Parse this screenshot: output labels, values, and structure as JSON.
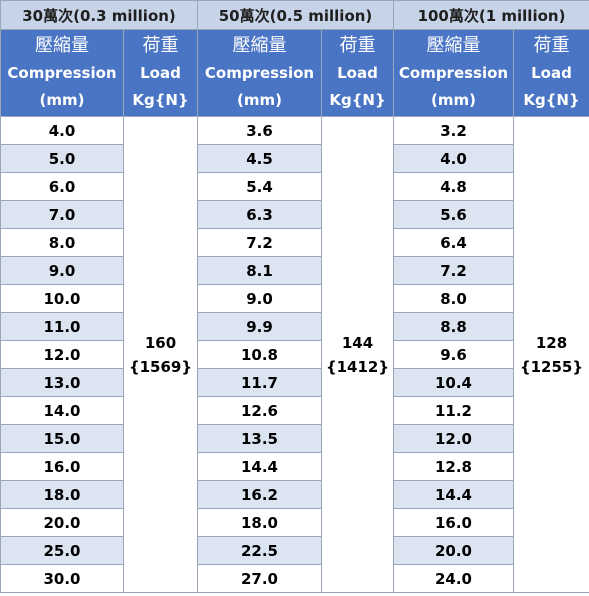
{
  "groups": [
    {
      "title": "30萬次(0.3 million)",
      "comp_zh": "壓縮量",
      "comp_en": "Compression",
      "comp_unit": "(mm)",
      "load_zh": "荷重",
      "load_en": "Load",
      "load_unit": "Kg{N}",
      "load_kg": "160",
      "load_n": "{1569}",
      "compression": [
        "4.0",
        "5.0",
        "6.0",
        "7.0",
        "8.0",
        "9.0",
        "10.0",
        "11.0",
        "12.0",
        "13.0",
        "14.0",
        "15.0",
        "16.0",
        "18.0",
        "20.0",
        "25.0",
        "30.0"
      ]
    },
    {
      "title": "50萬次(0.5 million)",
      "comp_zh": "壓縮量",
      "comp_en": "Compression",
      "comp_unit": "(mm)",
      "load_zh": "荷重",
      "load_en": "Load",
      "load_unit": "Kg{N}",
      "load_kg": "144",
      "load_n": "{1412}",
      "compression": [
        "3.6",
        "4.5",
        "5.4",
        "6.3",
        "7.2",
        "8.1",
        "9.0",
        "9.9",
        "10.8",
        "11.7",
        "12.6",
        "13.5",
        "14.4",
        "16.2",
        "18.0",
        "22.5",
        "27.0"
      ]
    },
    {
      "title": "100萬次(1 million)",
      "comp_zh": "壓縮量",
      "comp_en": "Compression",
      "comp_unit": "(mm)",
      "load_zh": "荷重",
      "load_en": "Load",
      "load_unit": "Kg{N}",
      "load_kg": "128",
      "load_n": "{1255}",
      "compression": [
        "3.2",
        "4.0",
        "4.8",
        "5.6",
        "6.4",
        "7.2",
        "8.0",
        "8.8",
        "9.6",
        "10.4",
        "11.2",
        "12.0",
        "12.8",
        "14.4",
        "16.0",
        "20.0",
        "24.0"
      ]
    }
  ]
}
